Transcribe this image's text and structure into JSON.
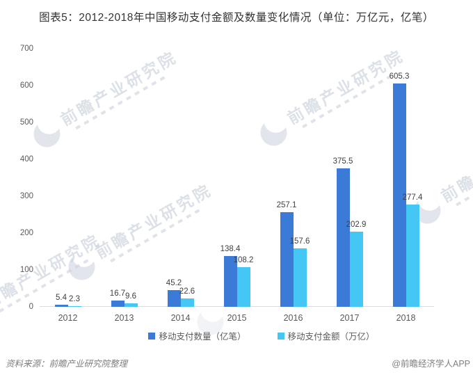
{
  "title": "图表5：2012-2018年中国移动支付金额及数量变化情况（单位：万亿元，亿笔）",
  "watermark_text": "前瞻产业研究院",
  "footer": {
    "source": "资料来源：前瞻产业研究院整理",
    "credit": "@前瞻经济学人APP"
  },
  "chart_data": {
    "type": "bar",
    "title": "图表5：2012-2018年中国移动支付金额及数量变化情况（单位：万亿元，亿笔）",
    "categories": [
      "2012",
      "2013",
      "2014",
      "2015",
      "2016",
      "2017",
      "2018"
    ],
    "series": [
      {
        "name": "移动支付数量（亿笔）",
        "color": "#3C7AD8",
        "values": [
          5.4,
          16.7,
          45.2,
          138.4,
          257.1,
          375.5,
          605.3
        ]
      },
      {
        "name": "移动支付金额（万亿）",
        "color": "#44C7F4",
        "values": [
          2.3,
          9.6,
          22.6,
          108.2,
          157.6,
          202.9,
          277.4
        ]
      }
    ],
    "xlabel": "",
    "ylabel": "",
    "ylim": [
      0,
      700
    ],
    "y_ticks": [
      0,
      100,
      200,
      300,
      400,
      500,
      600,
      700
    ],
    "grid": false,
    "legend_position": "bottom"
  }
}
